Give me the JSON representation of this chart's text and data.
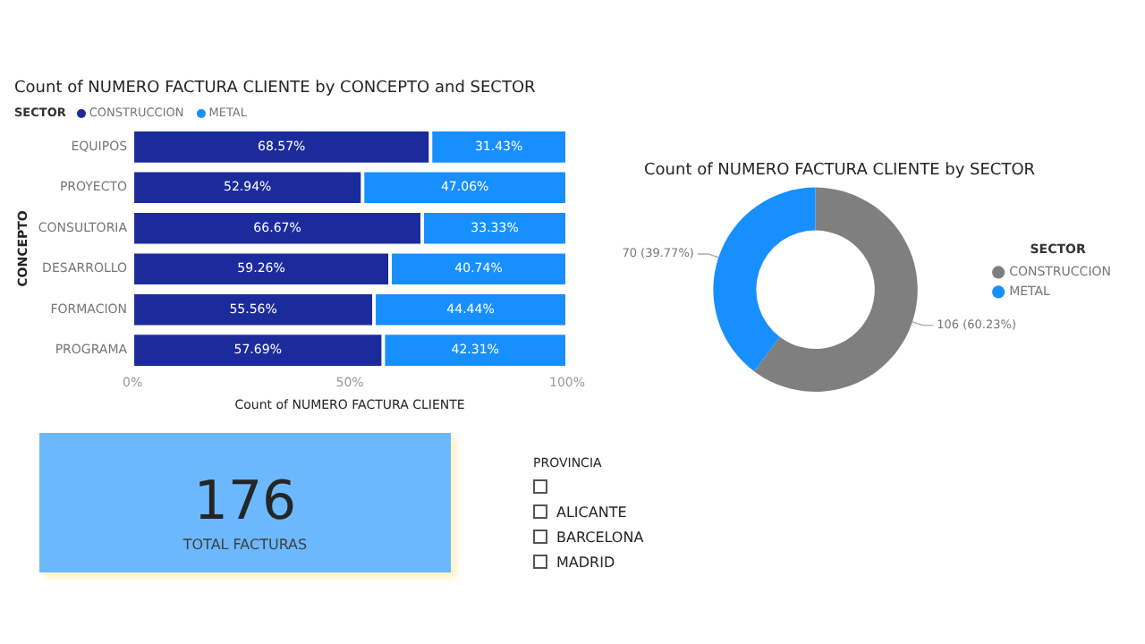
{
  "chart_data": [
    {
      "type": "bar",
      "title": "Count of NUMERO FACTURA CLIENTE by CONCEPTO and SECTOR",
      "legend_title": "SECTOR",
      "xlabel": "Count of NUMERO FACTURA CLIENTE",
      "ylabel": "CONCEPTO",
      "orientation": "horizontal",
      "stacked": true,
      "legend": "top left",
      "categories": [
        "EQUIPOS",
        "PROYECTO",
        "CONSULTORIA",
        "DESARROLLO",
        "FORMACION",
        "PROGRAMA"
      ],
      "xlim": [
        0,
        100
      ],
      "xticks": [
        {
          "value": 0,
          "label": "0%"
        },
        {
          "value": 50,
          "label": "50%"
        },
        {
          "value": 100,
          "label": "100%"
        }
      ],
      "series": [
        {
          "name": "CONSTRUCCION",
          "color": "#1c2b9c",
          "values": [
            68.57,
            52.94,
            66.67,
            59.26,
            55.56,
            57.69
          ],
          "value_labels": [
            "68.57%",
            "52.94%",
            "66.67%",
            "59.26%",
            "55.56%",
            "57.69%"
          ]
        },
        {
          "name": "METAL",
          "color": "#178fff",
          "values": [
            31.43,
            47.06,
            33.33,
            40.74,
            44.44,
            42.31
          ],
          "value_labels": [
            "31.43%",
            "47.06%",
            "33.33%",
            "40.74%",
            "44.44%",
            "42.31%"
          ]
        }
      ]
    },
    {
      "type": "donut",
      "title": "Count of NUMERO FACTURA CLIENTE by SECTOR",
      "legend_title": "SECTOR",
      "legend": "right",
      "categories": [
        "CONSTRUCCION",
        "METAL"
      ],
      "values": [
        106,
        70
      ],
      "colors": [
        "#7f7f7f",
        "#178fff"
      ],
      "value_labels": [
        "106 (60.23%)",
        "70 (39.77%)"
      ]
    },
    {
      "type": "other",
      "categories": [
        "TOTAL FACTURAS"
      ],
      "values": [
        176
      ],
      "data_labels": true
    },
    {
      "type": "other",
      "title": "PROVINCIA",
      "categories": [
        null,
        "ALICANTE",
        "BARCELONA",
        "MADRID"
      ]
    }
  ]
}
